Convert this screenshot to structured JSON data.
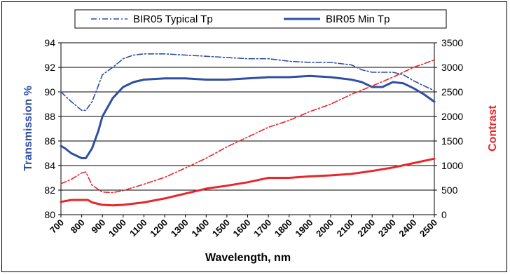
{
  "chart_data": {
    "type": "line",
    "xlabel": "Wavelength, nm",
    "ylabel_left": "Transmission %",
    "ylabel_right": "Contrast",
    "xlim": [
      700,
      2500
    ],
    "ylim_left": [
      80,
      94
    ],
    "ylim_right": [
      0,
      3500
    ],
    "x_ticks": [
      700,
      800,
      900,
      1000,
      1100,
      1200,
      1300,
      1400,
      1500,
      1600,
      1700,
      1800,
      1900,
      2000,
      2100,
      2200,
      2300,
      2400,
      2500
    ],
    "y_ticks_left": [
      80,
      82,
      84,
      86,
      88,
      90,
      92,
      94
    ],
    "y_ticks_right": [
      0,
      500,
      1000,
      1500,
      2000,
      2500,
      3000,
      3500
    ],
    "grid": "horizontal",
    "legend_position": "top",
    "legend": [
      {
        "label": "BIR05 Typical Tp",
        "style": "dash-dot",
        "color": "#2f4fa2"
      },
      {
        "label": "BIR05 Min Tp",
        "style": "solid",
        "color": "#2f4fa2"
      }
    ],
    "colors": {
      "transmission": "#2f4fa2",
      "contrast": "#e8262b"
    },
    "series": [
      {
        "axis": "left",
        "style": "dash-dot",
        "color": "#2f4fa2",
        "x": [
          700,
          750,
          800,
          820,
          850,
          880,
          900,
          950,
          1000,
          1050,
          1100,
          1200,
          1300,
          1400,
          1500,
          1600,
          1700,
          1800,
          1900,
          2000,
          2100,
          2150,
          2200,
          2250,
          2300,
          2350,
          2400,
          2450,
          2500
        ],
        "y": [
          90.0,
          89.2,
          88.5,
          88.5,
          89.2,
          90.5,
          91.4,
          92.0,
          92.7,
          93.0,
          93.1,
          93.1,
          93.0,
          92.9,
          92.8,
          92.7,
          92.7,
          92.5,
          92.4,
          92.4,
          92.2,
          91.8,
          91.6,
          91.6,
          91.6,
          91.4,
          90.9,
          90.5,
          90.1
        ]
      },
      {
        "axis": "left",
        "style": "solid",
        "color": "#2f4fa2",
        "x": [
          700,
          720,
          750,
          800,
          820,
          850,
          880,
          900,
          950,
          1000,
          1050,
          1100,
          1200,
          1300,
          1400,
          1500,
          1600,
          1700,
          1800,
          1900,
          2000,
          2100,
          2150,
          2200,
          2250,
          2300,
          2350,
          2400,
          2450,
          2500
        ],
        "y": [
          85.6,
          85.4,
          85.0,
          84.6,
          84.6,
          85.4,
          86.8,
          88.0,
          89.5,
          90.4,
          90.8,
          91.0,
          91.1,
          91.1,
          91.0,
          91.0,
          91.1,
          91.2,
          91.2,
          91.3,
          91.2,
          91.0,
          90.8,
          90.4,
          90.4,
          90.8,
          90.7,
          90.3,
          89.8,
          89.2
        ]
      },
      {
        "axis": "right",
        "style": "dash-dot",
        "color": "#e8262b",
        "x": [
          700,
          750,
          800,
          820,
          850,
          900,
          950,
          1000,
          1100,
          1200,
          1300,
          1400,
          1500,
          1600,
          1700,
          1800,
          1900,
          2000,
          2100,
          2200,
          2300,
          2400,
          2500
        ],
        "y": [
          630,
          720,
          850,
          870,
          600,
          460,
          450,
          490,
          620,
          760,
          950,
          1150,
          1380,
          1580,
          1780,
          1920,
          2100,
          2250,
          2450,
          2620,
          2800,
          3000,
          3150
        ]
      },
      {
        "axis": "right",
        "style": "solid",
        "color": "#e8262b",
        "x": [
          700,
          750,
          800,
          830,
          850,
          900,
          950,
          1000,
          1100,
          1200,
          1300,
          1400,
          1500,
          1600,
          1700,
          1800,
          1900,
          2000,
          2100,
          2200,
          2300,
          2400,
          2500
        ],
        "y": [
          260,
          300,
          300,
          300,
          250,
          200,
          190,
          200,
          250,
          330,
          430,
          530,
          590,
          660,
          750,
          750,
          780,
          800,
          830,
          890,
          960,
          1050,
          1140
        ]
      }
    ]
  }
}
